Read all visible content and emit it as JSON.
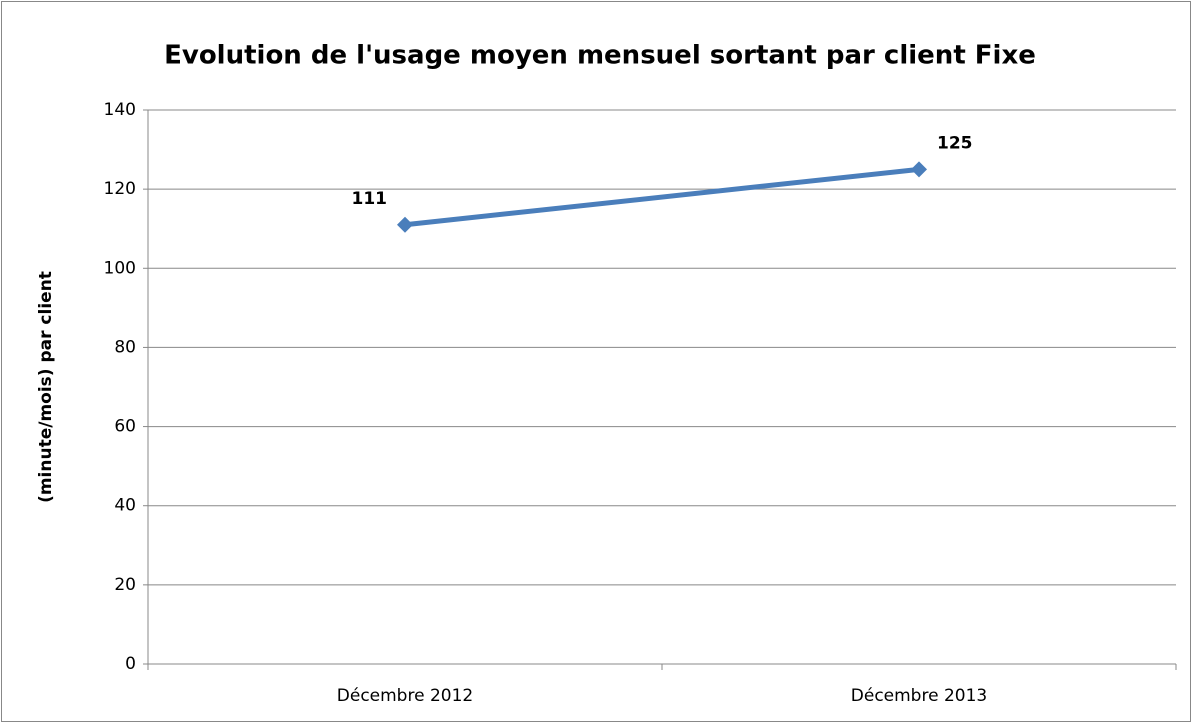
{
  "chart_data": {
    "type": "line",
    "title": "Evolution de l'usage moyen mensuel sortant par client Fixe",
    "y_label": "(minute/mois) par client",
    "categories": [
      "Décembre 2012",
      "Décembre 2013"
    ],
    "values": [
      111,
      125
    ],
    "color": "#4a7ebb",
    "ylim": [
      0,
      140
    ],
    "yticks": [
      0,
      20,
      40,
      60,
      80,
      100,
      120,
      140
    ],
    "grid": true
  }
}
